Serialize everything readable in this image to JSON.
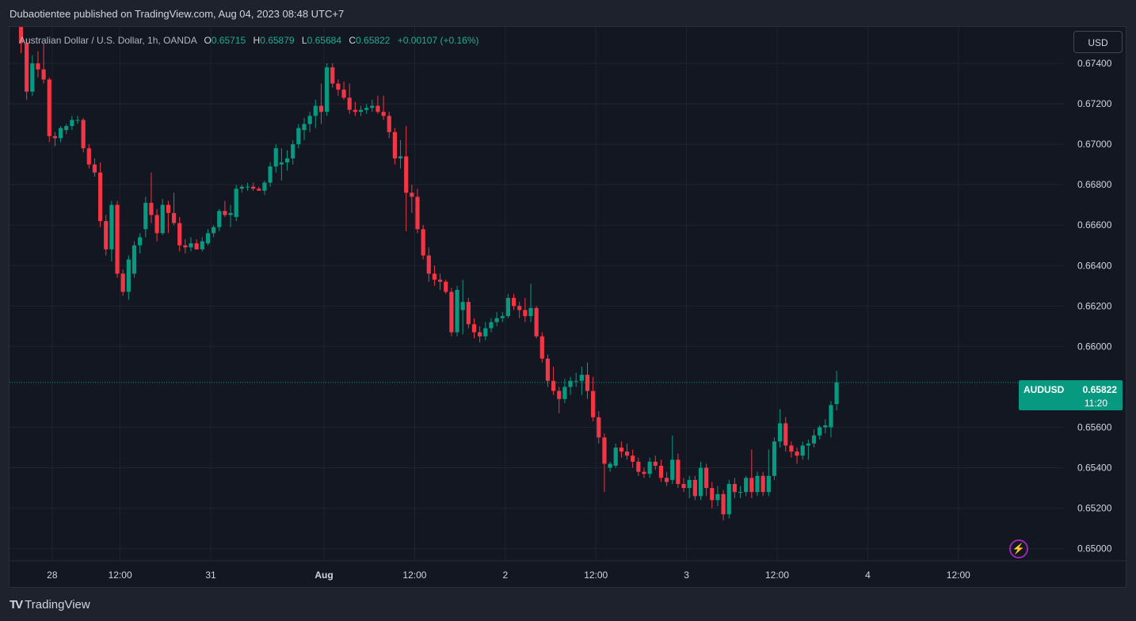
{
  "publisher": "Dubaotientee published on TradingView.com, Aug 04, 2023 08:48 UTC+7",
  "legend": {
    "title": "Australian Dollar / U.S. Dollar, 1h, OANDA",
    "o_label": "O",
    "o_value": "0.65715",
    "h_label": "H",
    "h_value": "0.65879",
    "l_label": "L",
    "l_value": "0.65684",
    "c_label": "C",
    "c_value": "0.65822",
    "change": "+0.00107 (+0.16%)"
  },
  "currency_button": "USD",
  "price_tag": {
    "symbol": "AUDUSD",
    "price": "0.65822",
    "countdown": "11:20"
  },
  "alert_icon": "lightning-bolt-icon",
  "brand": {
    "logo": "TV",
    "name": "TradingView"
  },
  "colors": {
    "up": "#089981",
    "down": "#f23645",
    "background": "#131722",
    "grid": "#1f2431",
    "text": "#d1d4dc",
    "current_price_line": "#089981",
    "alert_ring": "#9c27b0"
  },
  "chart_data": {
    "type": "candlestick",
    "symbol": "AUDUSD",
    "interval": "1h",
    "y_axis": {
      "range": [
        0.6494,
        0.6758
      ],
      "ticks": [
        "0.67400",
        "0.67200",
        "0.67000",
        "0.66800",
        "0.66600",
        "0.66400",
        "0.66200",
        "0.66000",
        "0.65600",
        "0.65400",
        "0.65200",
        "0.65000"
      ],
      "tick_values": [
        0.674,
        0.672,
        0.67,
        0.668,
        0.666,
        0.664,
        0.662,
        0.66,
        0.656,
        0.654,
        0.652,
        0.65
      ]
    },
    "x_axis": {
      "labels": [
        "28",
        "12:00",
        "31",
        "Aug",
        "12:00",
        "2",
        "12:00",
        "3",
        "12:00",
        "4",
        "12:00"
      ],
      "label_candle_index": [
        5.5,
        17.5,
        33.5,
        53.5,
        69.5,
        85.5,
        101.5,
        117.5,
        133.5,
        149.5,
        165.5
      ]
    },
    "current_price": 0.65822,
    "grid": true,
    "candles": [
      {
        "o": 0.6758,
        "h": 0.6762,
        "l": 0.6745,
        "c": 0.675
      },
      {
        "o": 0.675,
        "h": 0.6752,
        "l": 0.6722,
        "c": 0.6726
      },
      {
        "o": 0.6726,
        "h": 0.6744,
        "l": 0.6724,
        "c": 0.674
      },
      {
        "o": 0.674,
        "h": 0.6746,
        "l": 0.6733,
        "c": 0.6737
      },
      {
        "o": 0.6737,
        "h": 0.675,
        "l": 0.673,
        "c": 0.6732
      },
      {
        "o": 0.6732,
        "h": 0.6733,
        "l": 0.6701,
        "c": 0.6704
      },
      {
        "o": 0.6704,
        "h": 0.6706,
        "l": 0.6699,
        "c": 0.6703
      },
      {
        "o": 0.6703,
        "h": 0.6709,
        "l": 0.6701,
        "c": 0.6708
      },
      {
        "o": 0.6707,
        "h": 0.671,
        "l": 0.6705,
        "c": 0.6709
      },
      {
        "o": 0.6709,
        "h": 0.6714,
        "l": 0.6707,
        "c": 0.6712
      },
      {
        "o": 0.6712,
        "h": 0.6714,
        "l": 0.671,
        "c": 0.6712
      },
      {
        "o": 0.6712,
        "h": 0.6713,
        "l": 0.6696,
        "c": 0.6698
      },
      {
        "o": 0.6698,
        "h": 0.67,
        "l": 0.6688,
        "c": 0.669
      },
      {
        "o": 0.669,
        "h": 0.6693,
        "l": 0.6684,
        "c": 0.6686
      },
      {
        "o": 0.6686,
        "h": 0.6691,
        "l": 0.6659,
        "c": 0.6662
      },
      {
        "o": 0.6662,
        "h": 0.6665,
        "l": 0.6645,
        "c": 0.6648
      },
      {
        "o": 0.6648,
        "h": 0.6672,
        "l": 0.6642,
        "c": 0.667
      },
      {
        "o": 0.667,
        "h": 0.6672,
        "l": 0.6634,
        "c": 0.6636
      },
      {
        "o": 0.6636,
        "h": 0.6638,
        "l": 0.6625,
        "c": 0.6627
      },
      {
        "o": 0.6627,
        "h": 0.6645,
        "l": 0.6623,
        "c": 0.6643
      },
      {
        "o": 0.6636,
        "h": 0.6652,
        "l": 0.6634,
        "c": 0.665
      },
      {
        "o": 0.665,
        "h": 0.6656,
        "l": 0.6646,
        "c": 0.6654
      },
      {
        "o": 0.6658,
        "h": 0.6674,
        "l": 0.6654,
        "c": 0.6671
      },
      {
        "o": 0.6671,
        "h": 0.6686,
        "l": 0.6661,
        "c": 0.6665
      },
      {
        "o": 0.6665,
        "h": 0.6668,
        "l": 0.6652,
        "c": 0.6656
      },
      {
        "o": 0.6656,
        "h": 0.6673,
        "l": 0.6655,
        "c": 0.667
      },
      {
        "o": 0.667,
        "h": 0.6672,
        "l": 0.6656,
        "c": 0.6666
      },
      {
        "o": 0.6666,
        "h": 0.6676,
        "l": 0.666,
        "c": 0.6661
      },
      {
        "o": 0.6661,
        "h": 0.6664,
        "l": 0.6647,
        "c": 0.665
      },
      {
        "o": 0.665,
        "h": 0.6653,
        "l": 0.6646,
        "c": 0.6649
      },
      {
        "o": 0.6649,
        "h": 0.6654,
        "l": 0.6647,
        "c": 0.6651
      },
      {
        "o": 0.6651,
        "h": 0.6653,
        "l": 0.6648,
        "c": 0.6648
      },
      {
        "o": 0.6648,
        "h": 0.6654,
        "l": 0.6647,
        "c": 0.6652
      },
      {
        "o": 0.6651,
        "h": 0.6658,
        "l": 0.665,
        "c": 0.6656
      },
      {
        "o": 0.6656,
        "h": 0.666,
        "l": 0.6654,
        "c": 0.6659
      },
      {
        "o": 0.6659,
        "h": 0.6668,
        "l": 0.6657,
        "c": 0.6667
      },
      {
        "o": 0.6667,
        "h": 0.6672,
        "l": 0.6664,
        "c": 0.6665
      },
      {
        "o": 0.6665,
        "h": 0.667,
        "l": 0.6659,
        "c": 0.6666
      },
      {
        "o": 0.6664,
        "h": 0.668,
        "l": 0.6662,
        "c": 0.6678
      },
      {
        "o": 0.6678,
        "h": 0.668,
        "l": 0.6676,
        "c": 0.6679
      },
      {
        "o": 0.6679,
        "h": 0.6681,
        "l": 0.6677,
        "c": 0.6679
      },
      {
        "o": 0.6679,
        "h": 0.6681,
        "l": 0.6677,
        "c": 0.6678
      },
      {
        "o": 0.6678,
        "h": 0.6679,
        "l": 0.6677,
        "c": 0.6677
      },
      {
        "o": 0.6677,
        "h": 0.6682,
        "l": 0.6675,
        "c": 0.6681
      },
      {
        "o": 0.6681,
        "h": 0.6691,
        "l": 0.6679,
        "c": 0.6689
      },
      {
        "o": 0.6689,
        "h": 0.67,
        "l": 0.6686,
        "c": 0.6698
      },
      {
        "o": 0.669,
        "h": 0.6698,
        "l": 0.6682,
        "c": 0.6691
      },
      {
        "o": 0.6691,
        "h": 0.6697,
        "l": 0.6687,
        "c": 0.6693
      },
      {
        "o": 0.6693,
        "h": 0.6702,
        "l": 0.669,
        "c": 0.67
      },
      {
        "o": 0.67,
        "h": 0.671,
        "l": 0.6698,
        "c": 0.6708
      },
      {
        "o": 0.6707,
        "h": 0.6713,
        "l": 0.6702,
        "c": 0.671
      },
      {
        "o": 0.671,
        "h": 0.6716,
        "l": 0.6706,
        "c": 0.6714
      },
      {
        "o": 0.6714,
        "h": 0.6722,
        "l": 0.6708,
        "c": 0.6719
      },
      {
        "o": 0.6719,
        "h": 0.673,
        "l": 0.671,
        "c": 0.6716
      },
      {
        "o": 0.6716,
        "h": 0.674,
        "l": 0.6714,
        "c": 0.6738
      },
      {
        "o": 0.6738,
        "h": 0.674,
        "l": 0.6728,
        "c": 0.673
      },
      {
        "o": 0.673,
        "h": 0.6732,
        "l": 0.6724,
        "c": 0.6727
      },
      {
        "o": 0.6727,
        "h": 0.6731,
        "l": 0.6722,
        "c": 0.6723
      },
      {
        "o": 0.6723,
        "h": 0.673,
        "l": 0.6715,
        "c": 0.6717
      },
      {
        "o": 0.6717,
        "h": 0.6721,
        "l": 0.6714,
        "c": 0.6716
      },
      {
        "o": 0.6716,
        "h": 0.6719,
        "l": 0.6714,
        "c": 0.6717
      },
      {
        "o": 0.6717,
        "h": 0.672,
        "l": 0.6715,
        "c": 0.6718
      },
      {
        "o": 0.6718,
        "h": 0.6722,
        "l": 0.6716,
        "c": 0.6719
      },
      {
        "o": 0.6719,
        "h": 0.6724,
        "l": 0.6715,
        "c": 0.6716
      },
      {
        "o": 0.6716,
        "h": 0.6724,
        "l": 0.6712,
        "c": 0.6714
      },
      {
        "o": 0.6714,
        "h": 0.6716,
        "l": 0.6703,
        "c": 0.6706
      },
      {
        "o": 0.6706,
        "h": 0.6708,
        "l": 0.669,
        "c": 0.6693
      },
      {
        "o": 0.6693,
        "h": 0.6702,
        "l": 0.6688,
        "c": 0.6694
      },
      {
        "o": 0.6694,
        "h": 0.6709,
        "l": 0.6657,
        "c": 0.6676
      },
      {
        "o": 0.6676,
        "h": 0.668,
        "l": 0.6666,
        "c": 0.6674
      },
      {
        "o": 0.6674,
        "h": 0.6678,
        "l": 0.6656,
        "c": 0.6658
      },
      {
        "o": 0.6658,
        "h": 0.666,
        "l": 0.6643,
        "c": 0.6645
      },
      {
        "o": 0.6645,
        "h": 0.6649,
        "l": 0.6632,
        "c": 0.6636
      },
      {
        "o": 0.6636,
        "h": 0.664,
        "l": 0.663,
        "c": 0.6633
      },
      {
        "o": 0.6633,
        "h": 0.6636,
        "l": 0.6628,
        "c": 0.6632
      },
      {
        "o": 0.6632,
        "h": 0.6633,
        "l": 0.6626,
        "c": 0.6627
      },
      {
        "o": 0.6627,
        "h": 0.6629,
        "l": 0.6605,
        "c": 0.6607
      },
      {
        "o": 0.6607,
        "h": 0.663,
        "l": 0.6605,
        "c": 0.6628
      },
      {
        "o": 0.6618,
        "h": 0.6633,
        "l": 0.6606,
        "c": 0.6622
      },
      {
        "o": 0.6622,
        "h": 0.6624,
        "l": 0.6609,
        "c": 0.6611
      },
      {
        "o": 0.6611,
        "h": 0.6614,
        "l": 0.6604,
        "c": 0.6607
      },
      {
        "o": 0.6607,
        "h": 0.661,
        "l": 0.6602,
        "c": 0.6605
      },
      {
        "o": 0.6605,
        "h": 0.6612,
        "l": 0.6603,
        "c": 0.6609
      },
      {
        "o": 0.6609,
        "h": 0.6614,
        "l": 0.6607,
        "c": 0.6612
      },
      {
        "o": 0.6612,
        "h": 0.6617,
        "l": 0.661,
        "c": 0.6614
      },
      {
        "o": 0.6614,
        "h": 0.6617,
        "l": 0.6612,
        "c": 0.6615
      },
      {
        "o": 0.6615,
        "h": 0.6626,
        "l": 0.6614,
        "c": 0.6624
      },
      {
        "o": 0.6624,
        "h": 0.6626,
        "l": 0.6618,
        "c": 0.662
      },
      {
        "o": 0.662,
        "h": 0.6622,
        "l": 0.6614,
        "c": 0.6618
      },
      {
        "o": 0.6618,
        "h": 0.6624,
        "l": 0.6612,
        "c": 0.6615
      },
      {
        "o": 0.6615,
        "h": 0.6631,
        "l": 0.6612,
        "c": 0.6619
      },
      {
        "o": 0.6619,
        "h": 0.662,
        "l": 0.6604,
        "c": 0.6605
      },
      {
        "o": 0.6605,
        "h": 0.6607,
        "l": 0.6592,
        "c": 0.6594
      },
      {
        "o": 0.6594,
        "h": 0.6596,
        "l": 0.658,
        "c": 0.6583
      },
      {
        "o": 0.6583,
        "h": 0.659,
        "l": 0.6576,
        "c": 0.6578
      },
      {
        "o": 0.6578,
        "h": 0.658,
        "l": 0.6567,
        "c": 0.6574
      },
      {
        "o": 0.6574,
        "h": 0.6584,
        "l": 0.6572,
        "c": 0.658
      },
      {
        "o": 0.658,
        "h": 0.6585,
        "l": 0.6576,
        "c": 0.6583
      },
      {
        "o": 0.6583,
        "h": 0.6587,
        "l": 0.658,
        "c": 0.6583
      },
      {
        "o": 0.6583,
        "h": 0.659,
        "l": 0.6576,
        "c": 0.6586
      },
      {
        "o": 0.6586,
        "h": 0.6592,
        "l": 0.6574,
        "c": 0.6578
      },
      {
        "o": 0.6578,
        "h": 0.6585,
        "l": 0.6563,
        "c": 0.6565
      },
      {
        "o": 0.6565,
        "h": 0.6568,
        "l": 0.6552,
        "c": 0.6555
      },
      {
        "o": 0.6555,
        "h": 0.6557,
        "l": 0.6528,
        "c": 0.6542
      },
      {
        "o": 0.654,
        "h": 0.6543,
        "l": 0.6538,
        "c": 0.6542
      },
      {
        "o": 0.6541,
        "h": 0.6552,
        "l": 0.654,
        "c": 0.655
      },
      {
        "o": 0.655,
        "h": 0.6553,
        "l": 0.6545,
        "c": 0.6548
      },
      {
        "o": 0.6548,
        "h": 0.6552,
        "l": 0.6544,
        "c": 0.6546
      },
      {
        "o": 0.6546,
        "h": 0.6549,
        "l": 0.654,
        "c": 0.6543
      },
      {
        "o": 0.6543,
        "h": 0.6545,
        "l": 0.6536,
        "c": 0.6538
      },
      {
        "o": 0.6538,
        "h": 0.654,
        "l": 0.6535,
        "c": 0.6537
      },
      {
        "o": 0.6537,
        "h": 0.6545,
        "l": 0.6535,
        "c": 0.6543
      },
      {
        "o": 0.6543,
        "h": 0.6546,
        "l": 0.6539,
        "c": 0.6541
      },
      {
        "o": 0.6541,
        "h": 0.6544,
        "l": 0.6533,
        "c": 0.6535
      },
      {
        "o": 0.6535,
        "h": 0.6538,
        "l": 0.6531,
        "c": 0.6533
      },
      {
        "o": 0.6534,
        "h": 0.6556,
        "l": 0.6532,
        "c": 0.6544
      },
      {
        "o": 0.6544,
        "h": 0.6547,
        "l": 0.653,
        "c": 0.6532
      },
      {
        "o": 0.6532,
        "h": 0.6535,
        "l": 0.6528,
        "c": 0.653
      },
      {
        "o": 0.653,
        "h": 0.6536,
        "l": 0.6525,
        "c": 0.6534
      },
      {
        "o": 0.6534,
        "h": 0.6536,
        "l": 0.6524,
        "c": 0.6526
      },
      {
        "o": 0.6526,
        "h": 0.6543,
        "l": 0.6524,
        "c": 0.654
      },
      {
        "o": 0.654,
        "h": 0.6542,
        "l": 0.6526,
        "c": 0.653
      },
      {
        "o": 0.653,
        "h": 0.6533,
        "l": 0.652,
        "c": 0.6524
      },
      {
        "o": 0.6524,
        "h": 0.6531,
        "l": 0.6521,
        "c": 0.6527
      },
      {
        "o": 0.6527,
        "h": 0.6529,
        "l": 0.6514,
        "c": 0.6517
      },
      {
        "o": 0.6517,
        "h": 0.6534,
        "l": 0.6515,
        "c": 0.6532
      },
      {
        "o": 0.6532,
        "h": 0.6535,
        "l": 0.6525,
        "c": 0.6528
      },
      {
        "o": 0.6528,
        "h": 0.6531,
        "l": 0.6525,
        "c": 0.6528
      },
      {
        "o": 0.6528,
        "h": 0.6536,
        "l": 0.6526,
        "c": 0.6535
      },
      {
        "o": 0.6535,
        "h": 0.6549,
        "l": 0.6525,
        "c": 0.6528
      },
      {
        "o": 0.6528,
        "h": 0.6538,
        "l": 0.6526,
        "c": 0.6536
      },
      {
        "o": 0.6536,
        "h": 0.6538,
        "l": 0.6526,
        "c": 0.6528
      },
      {
        "o": 0.6528,
        "h": 0.6549,
        "l": 0.6526,
        "c": 0.6536
      },
      {
        "o": 0.6536,
        "h": 0.6555,
        "l": 0.6534,
        "c": 0.6553
      },
      {
        "o": 0.6553,
        "h": 0.6569,
        "l": 0.655,
        "c": 0.6562
      },
      {
        "o": 0.6562,
        "h": 0.6565,
        "l": 0.6548,
        "c": 0.6551
      },
      {
        "o": 0.6551,
        "h": 0.6553,
        "l": 0.6545,
        "c": 0.6548
      },
      {
        "o": 0.6548,
        "h": 0.655,
        "l": 0.6542,
        "c": 0.6546
      },
      {
        "o": 0.6546,
        "h": 0.6553,
        "l": 0.6544,
        "c": 0.6551
      },
      {
        "o": 0.6551,
        "h": 0.6554,
        "l": 0.6544,
        "c": 0.6552
      },
      {
        "o": 0.6552,
        "h": 0.6559,
        "l": 0.655,
        "c": 0.6556
      },
      {
        "o": 0.6556,
        "h": 0.6561,
        "l": 0.6554,
        "c": 0.656
      },
      {
        "o": 0.656,
        "h": 0.6564,
        "l": 0.6557,
        "c": 0.6561
      },
      {
        "o": 0.656,
        "h": 0.6573,
        "l": 0.6555,
        "c": 0.6571
      },
      {
        "o": 0.65715,
        "h": 0.65879,
        "l": 0.65684,
        "c": 0.65822
      }
    ]
  }
}
